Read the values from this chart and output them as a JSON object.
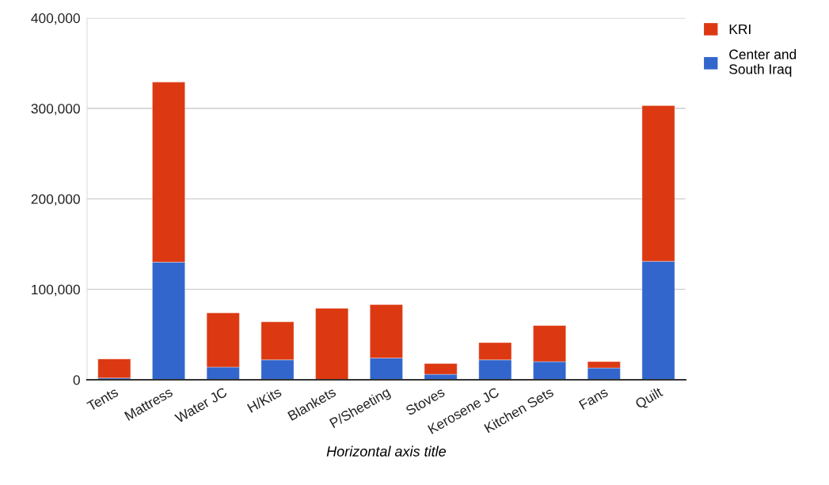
{
  "chart_data": {
    "type": "bar",
    "stacked": true,
    "xlabel": "Horizontal axis title",
    "categories": [
      "Tents",
      "Mattress",
      "Water JC",
      "H/Kits",
      "Blankets",
      "P/Sheeting",
      "Stoves",
      "Kerosene JC",
      "Kitchen Sets",
      "Fans",
      "Quilt"
    ],
    "series": [
      {
        "name": "Center and South Iraq",
        "color": "#3366cc",
        "values": [
          2000,
          130000,
          14000,
          22000,
          0,
          24000,
          6000,
          22000,
          20000,
          13000,
          131000
        ]
      },
      {
        "name": "KRI",
        "color": "#dc3912",
        "values": [
          21000,
          199000,
          60000,
          42000,
          79000,
          59000,
          12000,
          19000,
          40000,
          7000,
          172000
        ]
      }
    ],
    "ylim": [
      0,
      400000
    ],
    "yticks": [
      {
        "value": 0,
        "label": "0"
      },
      {
        "value": 100000,
        "label": "100,000"
      },
      {
        "value": 200000,
        "label": "200,000"
      },
      {
        "value": 300000,
        "label": "300,000"
      },
      {
        "value": 400000,
        "label": "400,000"
      }
    ],
    "grid": "y",
    "legend": "top right"
  }
}
